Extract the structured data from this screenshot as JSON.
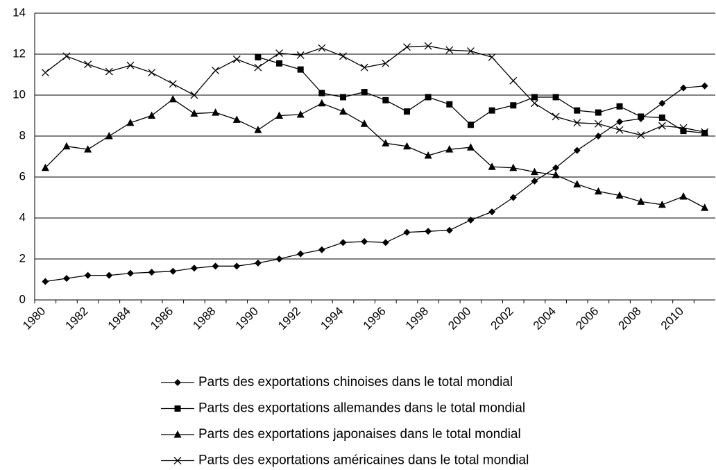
{
  "chart_data": {
    "type": "line",
    "categories": [
      "1980",
      null,
      "1982",
      null,
      "1984",
      null,
      "1986",
      null,
      "1988",
      null,
      "1990",
      null,
      "1992",
      null,
      "1994",
      null,
      "1996",
      null,
      "1998",
      null,
      "2000",
      null,
      "2002",
      null,
      "2004",
      null,
      "2006",
      null,
      "2008",
      null,
      "2010",
      null
    ],
    "series": [
      {
        "name": "Parts des exportations chinoises dans le total mondial",
        "color": "#000000",
        "marker": "diamond",
        "values": [
          0.9,
          1.05,
          1.2,
          1.2,
          1.3,
          1.35,
          1.4,
          1.55,
          1.65,
          1.65,
          1.8,
          2.0,
          2.25,
          2.45,
          2.8,
          2.85,
          2.8,
          3.3,
          3.35,
          3.4,
          3.9,
          4.3,
          5.0,
          5.8,
          6.45,
          7.3,
          8.0,
          8.7,
          8.85,
          9.6,
          10.35,
          10.45
        ]
      },
      {
        "name": "Parts des exportations allemandes dans le total mondial",
        "color": "#000000",
        "marker": "square",
        "values": [
          null,
          null,
          null,
          null,
          null,
          null,
          null,
          null,
          null,
          null,
          11.85,
          11.55,
          11.25,
          10.1,
          9.9,
          10.15,
          9.75,
          9.2,
          9.9,
          9.55,
          8.55,
          9.25,
          9.5,
          9.9,
          9.9,
          9.25,
          9.15,
          9.45,
          8.95,
          8.9,
          8.25,
          8.15
        ]
      },
      {
        "name": "Parts des exportations japonaises dans le total mondial",
        "color": "#000000",
        "marker": "triangle",
        "values": [
          6.45,
          7.5,
          7.35,
          8.0,
          8.65,
          9.0,
          9.8,
          9.1,
          9.15,
          8.8,
          8.3,
          9.0,
          9.05,
          9.6,
          9.2,
          8.6,
          7.65,
          7.5,
          7.05,
          7.35,
          7.45,
          6.5,
          6.45,
          6.25,
          6.1,
          5.65,
          5.3,
          5.1,
          4.8,
          4.65,
          5.05,
          4.5
        ]
      },
      {
        "name": "Parts des exportations américaines dans le total mondial",
        "color": "#000000",
        "marker": "x",
        "values": [
          11.1,
          11.9,
          11.5,
          11.15,
          11.45,
          11.1,
          10.55,
          10.0,
          11.2,
          11.75,
          11.35,
          12.05,
          11.95,
          12.3,
          11.9,
          11.35,
          11.55,
          12.35,
          12.4,
          12.2,
          12.15,
          11.85,
          10.7,
          9.6,
          8.95,
          8.65,
          8.6,
          8.3,
          8.05,
          8.5,
          8.4,
          8.2
        ]
      }
    ],
    "ylim": [
      0,
      14
    ],
    "yticks": [
      0,
      2,
      4,
      6,
      8,
      10,
      12,
      14
    ],
    "grid": true,
    "legend": "bottom"
  }
}
